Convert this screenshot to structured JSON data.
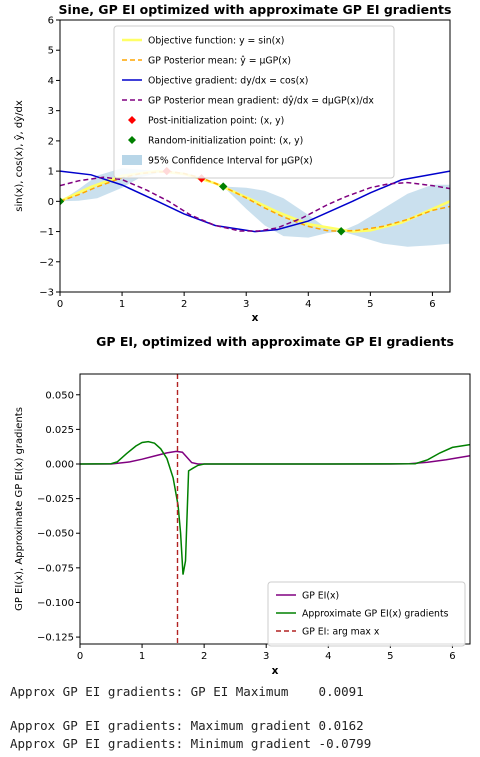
{
  "chart_data": [
    {
      "type": "line",
      "title": "Sine, GP EI optimized with approximate GP EI gradients",
      "xlabel": "x",
      "ylabel": "sin(x), cos(x), ŷ, dŷ/dx",
      "xlim": [
        0,
        6.2832
      ],
      "ylim": [
        -3,
        6
      ],
      "xticks": [
        0,
        1,
        2,
        3,
        4,
        5,
        6
      ],
      "yticks": [
        -3,
        -2,
        -1,
        0,
        1,
        2,
        3,
        4,
        5,
        6
      ],
      "grid": false,
      "legend_position": "top-center",
      "series": [
        {
          "name": "Objective function: y = sin(x)",
          "kind": "line",
          "color": "#ffff66",
          "x": [
            0,
            0.5,
            1.0,
            1.5708,
            2.0,
            2.5,
            3.1416,
            3.5,
            4.0,
            4.7124,
            5.0,
            5.5,
            6.2832
          ],
          "y": [
            0,
            0.479,
            0.841,
            1.0,
            0.909,
            0.598,
            0.0,
            -0.351,
            -0.757,
            -1.0,
            -0.959,
            -0.706,
            0
          ]
        },
        {
          "name": "GP Posterior mean: ŷ = μGP(x)",
          "kind": "dashed",
          "color": "#ffa500",
          "x": [
            0,
            0.3,
            0.6,
            1.0,
            1.3,
            1.6,
            1.75,
            2.0,
            2.3,
            2.63,
            3.0,
            3.3,
            3.6,
            4.0,
            4.3,
            4.53,
            4.8,
            5.2,
            5.6,
            6.0,
            6.2832
          ],
          "y": [
            0,
            0.22,
            0.48,
            0.78,
            0.92,
            0.97,
            0.99,
            0.92,
            0.76,
            0.49,
            0.11,
            -0.22,
            -0.52,
            -0.83,
            -0.97,
            -0.99,
            -0.96,
            -0.83,
            -0.6,
            -0.3,
            -0.17
          ]
        },
        {
          "name": "Objective gradient: dy/dx = cos(x)",
          "kind": "line",
          "color": "#0000cc",
          "x": [
            0,
            0.5,
            1.0,
            1.5708,
            2.0,
            2.5,
            3.1416,
            3.5,
            4.0,
            4.7124,
            5.0,
            5.5,
            6.2832
          ],
          "y": [
            1,
            0.878,
            0.54,
            0,
            -0.416,
            -0.801,
            -1,
            -0.936,
            -0.654,
            0,
            0.284,
            0.709,
            1
          ]
        },
        {
          "name": "GP Posterior mean gradient: dŷ/dx = dμGP(x)/dx",
          "kind": "dashed",
          "color": "#800080",
          "x": [
            0,
            0.3,
            0.7,
            1.0,
            1.4,
            1.75,
            2.1,
            2.5,
            2.9,
            3.2,
            3.5,
            3.9,
            4.3,
            4.6,
            5.0,
            5.3,
            5.6,
            6.0,
            6.2832
          ],
          "y": [
            0.52,
            0.68,
            0.8,
            0.72,
            0.37,
            0.0,
            -0.45,
            -0.8,
            -0.98,
            -0.98,
            -0.88,
            -0.55,
            -0.12,
            0.15,
            0.45,
            0.58,
            0.62,
            0.52,
            0.42
          ]
        },
        {
          "name": "Post-initialization point: (x, y)",
          "kind": "marker",
          "color": "#ff0000",
          "x": [
            1.72,
            2.28
          ],
          "y": [
            1.0,
            0.76
          ]
        },
        {
          "name": "Random-initialization point: (x, y)",
          "kind": "marker",
          "color": "#008000",
          "x": [
            0.0,
            2.63,
            4.53
          ],
          "y": [
            0.0,
            0.49,
            -0.99
          ]
        },
        {
          "name": "95% Confidence Interval for μGP(x)",
          "kind": "band",
          "color": "#b8d6e8",
          "x": [
            0,
            0.3,
            0.6,
            1.0,
            1.3,
            1.6,
            1.75,
            2.0,
            2.3,
            2.63,
            3.0,
            3.3,
            3.6,
            4.0,
            4.3,
            4.53,
            4.8,
            5.2,
            5.6,
            6.0,
            6.2832
          ],
          "upper": [
            0,
            0.4,
            0.85,
            1.1,
            1.05,
            1.0,
            1.0,
            0.95,
            0.8,
            0.49,
            0.45,
            0.35,
            0.1,
            -0.45,
            -0.9,
            -0.99,
            -0.75,
            -0.25,
            0.25,
            0.55,
            0.55
          ],
          "lower": [
            0,
            0.02,
            0.1,
            0.45,
            0.8,
            0.95,
            0.98,
            0.88,
            0.7,
            0.49,
            -0.25,
            -0.8,
            -1.15,
            -1.2,
            -1.05,
            -0.99,
            -1.15,
            -1.4,
            -1.5,
            -1.45,
            -1.4
          ]
        }
      ]
    },
    {
      "type": "line",
      "title": "GP EI, optimized with approximate GP EI gradients",
      "xlabel": "x",
      "ylabel": "GP EI(x), Approximate GP EI(x) gradients",
      "xlim": [
        0,
        6.2832
      ],
      "ylim": [
        -0.13,
        0.065
      ],
      "xticks": [
        0,
        1,
        2,
        3,
        4,
        5,
        6
      ],
      "yticks": [
        -0.125,
        -0.1,
        -0.075,
        -0.05,
        -0.025,
        0.0,
        0.025,
        0.05
      ],
      "ytick_labels": [
        "−0.125",
        "−0.100",
        "−0.075",
        "−0.050",
        "−0.025",
        "0.000",
        "0.025",
        "0.050"
      ],
      "grid": false,
      "legend_position": "lower-right",
      "series": [
        {
          "name": "GP EI(x)",
          "kind": "line",
          "color": "#800080",
          "x": [
            0,
            0.5,
            0.8,
            1.0,
            1.2,
            1.4,
            1.55,
            1.65,
            1.72,
            1.8,
            1.9,
            2.0,
            4.0,
            5.0,
            5.3,
            5.6,
            5.9,
            6.2832
          ],
          "y": [
            0,
            0,
            0.0015,
            0.0035,
            0.0058,
            0.008,
            0.0091,
            0.0085,
            0.005,
            0.001,
            0,
            0,
            0,
            0,
            0.0002,
            0.0012,
            0.003,
            0.006
          ]
        },
        {
          "name": "Approximate GP EI(x) gradients",
          "kind": "line",
          "color": "#008000",
          "x": [
            0,
            0.5,
            0.6,
            0.75,
            0.9,
            1.0,
            1.1,
            1.2,
            1.3,
            1.4,
            1.5,
            1.58,
            1.62,
            1.66,
            1.7,
            1.75,
            1.82,
            1.9,
            2.0,
            4.0,
            5.4,
            5.6,
            5.8,
            6.0,
            6.2832
          ],
          "y": [
            0,
            0.0002,
            0.0015,
            0.0075,
            0.013,
            0.0155,
            0.0162,
            0.015,
            0.011,
            0.004,
            -0.01,
            -0.03,
            -0.05,
            -0.0799,
            -0.07,
            -0.005,
            -0.003,
            -0.001,
            0,
            0,
            0.0002,
            0.003,
            0.008,
            0.012,
            0.014
          ]
        },
        {
          "name": "GP EI: arg max x",
          "kind": "vline",
          "color": "#b22222",
          "x": [
            1.5708
          ]
        }
      ]
    }
  ],
  "console": {
    "line1": "Approx GP EI gradients: GP EI Maximum    0.0091",
    "line2": "Approx GP EI gradients: Maximum gradient 0.0162",
    "line3": "Approx GP EI gradients: Minimum gradient -0.0799"
  }
}
